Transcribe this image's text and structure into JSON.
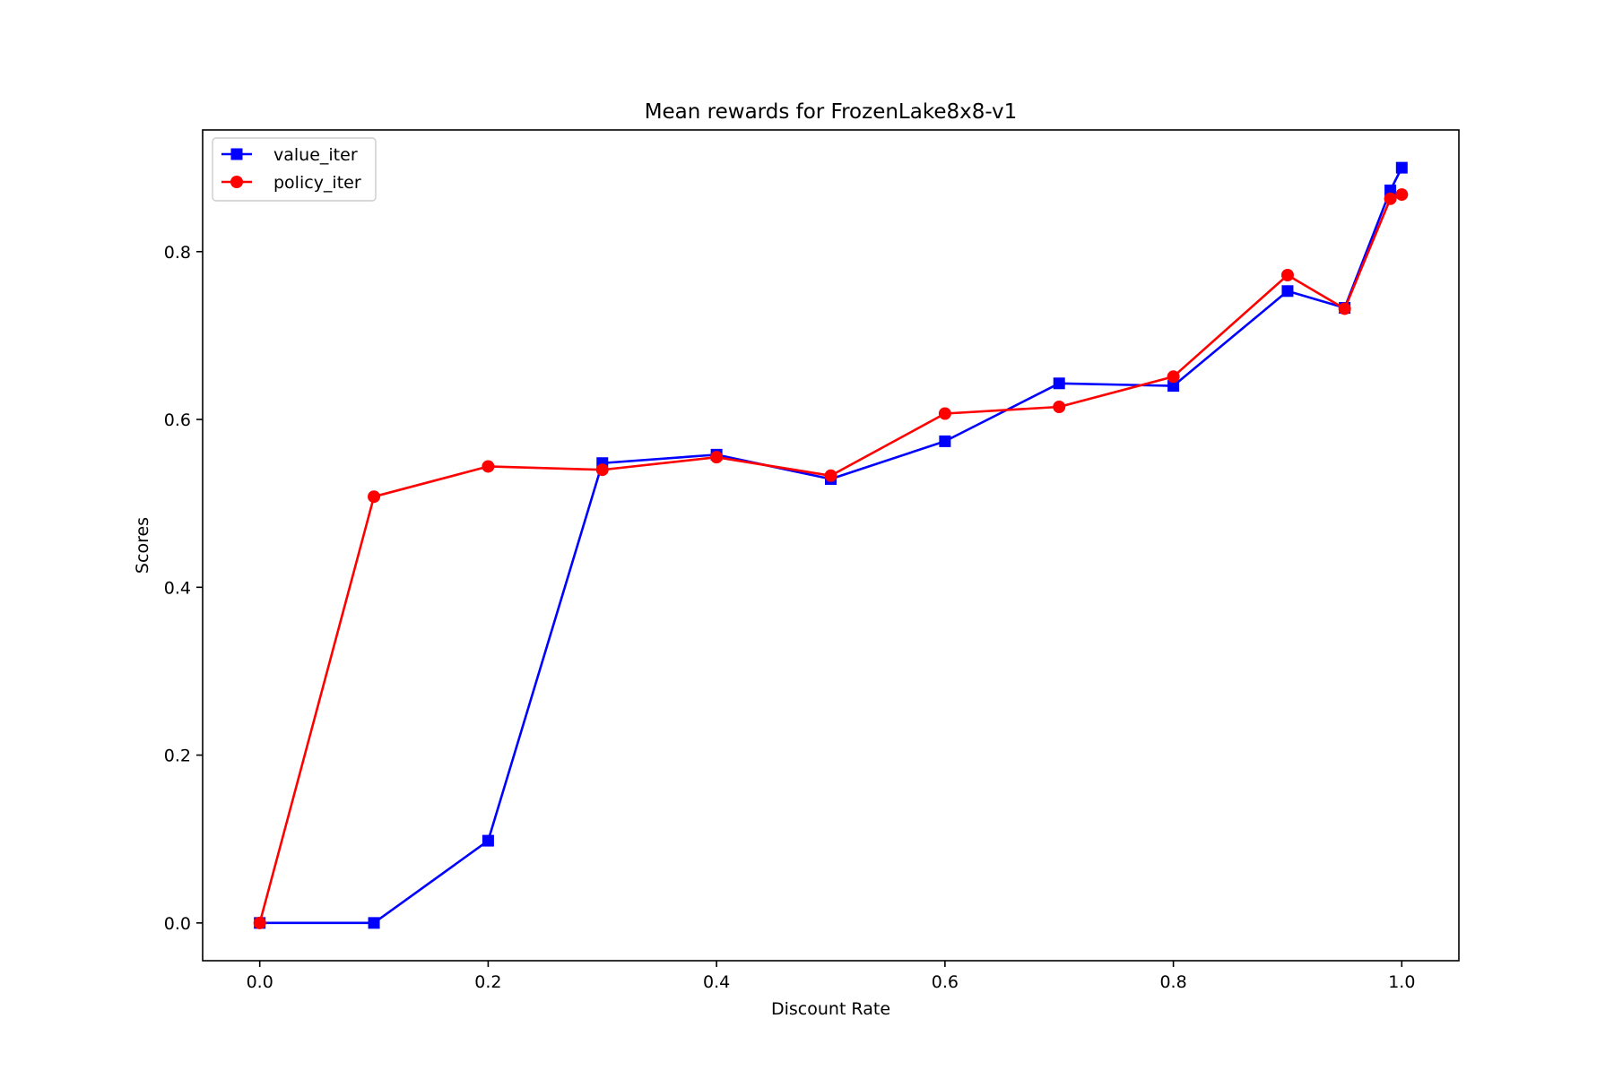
{
  "chart_data": {
    "type": "line",
    "title": "Mean rewards for FrozenLake8x8-v1",
    "xlabel": "Discount Rate",
    "ylabel": "Scores",
    "xlim": [
      -0.05,
      1.05
    ],
    "ylim": [
      -0.045,
      0.945
    ],
    "xticks": [
      0.0,
      0.2,
      0.4,
      0.6,
      0.8,
      1.0
    ],
    "xtick_labels": [
      "0.0",
      "0.2",
      "0.4",
      "0.6",
      "0.8",
      "1.0"
    ],
    "yticks": [
      0.0,
      0.2,
      0.4,
      0.6,
      0.8
    ],
    "ytick_labels": [
      "0.0",
      "0.2",
      "0.4",
      "0.6",
      "0.8"
    ],
    "grid": false,
    "legend_position": "top-left",
    "x": [
      0.0,
      0.1,
      0.2,
      0.3,
      0.4,
      0.5,
      0.6,
      0.7,
      0.8,
      0.9,
      0.95,
      0.99,
      1.0
    ],
    "series": [
      {
        "name": "value_iter",
        "color": "#0000ff",
        "marker": "square",
        "values": [
          0.0,
          0.0,
          0.098,
          0.548,
          0.558,
          0.529,
          0.574,
          0.643,
          0.64,
          0.753,
          0.733,
          0.873,
          0.9
        ]
      },
      {
        "name": "policy_iter",
        "color": "#ff0000",
        "marker": "circle",
        "values": [
          0.0,
          0.508,
          0.544,
          0.54,
          0.555,
          0.533,
          0.607,
          0.615,
          0.651,
          0.772,
          0.732,
          0.863,
          0.868
        ]
      }
    ]
  }
}
